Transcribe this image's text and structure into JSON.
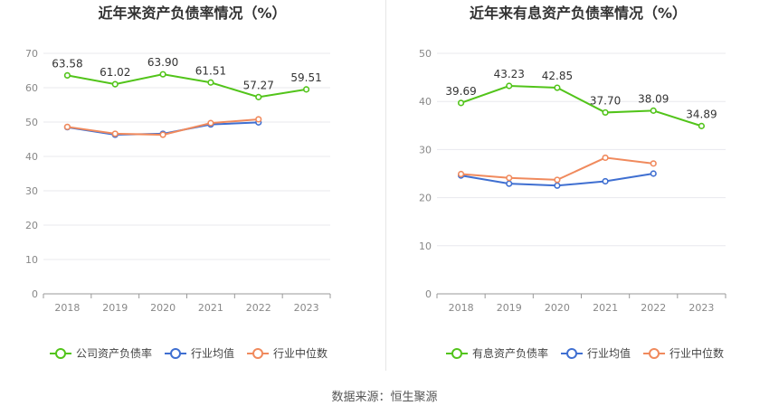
{
  "charts": [
    {
      "type": "line",
      "title": "近年来资产负债率情况（%）",
      "categories": [
        "2018",
        "2019",
        "2020",
        "2021",
        "2022",
        "2023"
      ],
      "ylim": [
        0,
        70
      ],
      "yticks": [
        0,
        10,
        20,
        30,
        40,
        50,
        60,
        70
      ],
      "grid": true,
      "legend_position": "bottom",
      "series": [
        {
          "name": "公司资产负债率",
          "color": "#52c41a",
          "values": [
            63.58,
            61.02,
            63.9,
            61.51,
            57.27,
            59.51
          ],
          "labels": [
            "63.58",
            "61.02",
            "63.90",
            "61.51",
            "57.27",
            "59.51"
          ]
        },
        {
          "name": "行业均值",
          "color": "#3f6fd1",
          "values": [
            48.5,
            46.3,
            46.6,
            49.3,
            49.9,
            null
          ],
          "labels": null
        },
        {
          "name": "行业中位数",
          "color": "#f08a5d",
          "values": [
            48.6,
            46.6,
            46.3,
            49.7,
            50.8,
            null
          ],
          "labels": null
        }
      ]
    },
    {
      "type": "line",
      "title": "近年来有息资产负债率情况（%）",
      "categories": [
        "2018",
        "2019",
        "2020",
        "2021",
        "2022",
        "2023"
      ],
      "ylim": [
        0,
        50
      ],
      "yticks": [
        0,
        10,
        20,
        30,
        40,
        50
      ],
      "grid": true,
      "legend_position": "bottom",
      "series": [
        {
          "name": "有息资产负债率",
          "color": "#52c41a",
          "values": [
            39.69,
            43.23,
            42.85,
            37.7,
            38.09,
            34.89
          ],
          "labels": [
            "39.69",
            "43.23",
            "42.85",
            "37.70",
            "38.09",
            "34.89"
          ]
        },
        {
          "name": "行业均值",
          "color": "#3f6fd1",
          "values": [
            24.6,
            22.9,
            22.5,
            23.4,
            25.0,
            null
          ],
          "labels": null
        },
        {
          "name": "行业中位数",
          "color": "#f08a5d",
          "values": [
            24.9,
            24.1,
            23.7,
            28.3,
            27.1,
            null
          ],
          "labels": null
        }
      ]
    }
  ],
  "source_text": "数据来源：恒生聚源"
}
